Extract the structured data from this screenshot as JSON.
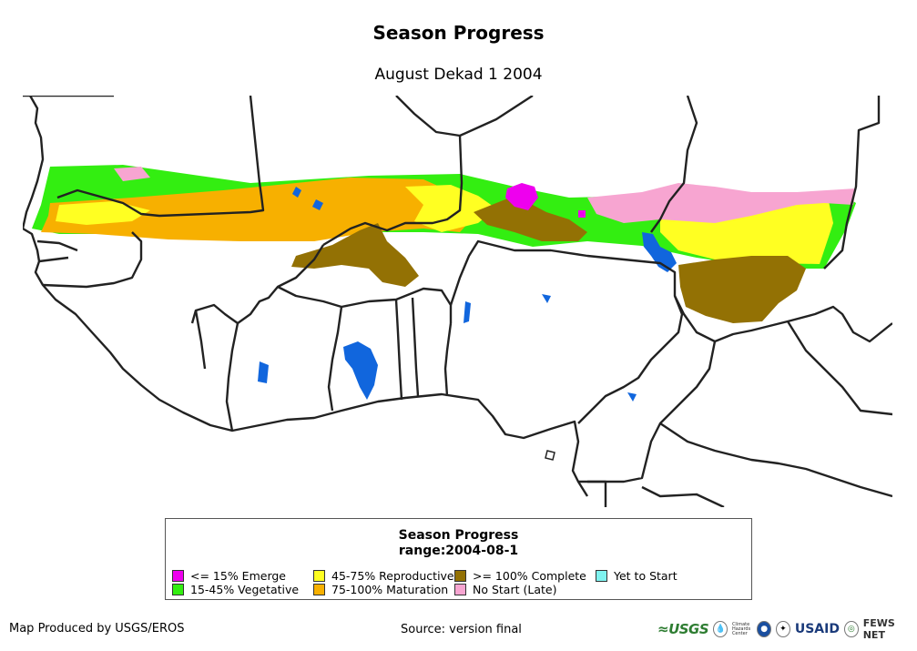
{
  "header": {
    "title": "Season Progress",
    "subtitle": "August Dekad 1 2004"
  },
  "legend": {
    "title_line1": "Season Progress",
    "title_line2": "range:2004-08-1",
    "items": [
      {
        "label": "<= 15% Emerge",
        "color": "#ee00ee"
      },
      {
        "label": "15-45% Vegetative",
        "color": "#33ee11"
      },
      {
        "label": "45-75% Reproductive",
        "color": "#ffff22"
      },
      {
        "label": "75-100% Maturation",
        "color": "#f7b000"
      },
      {
        "label": ">= 100% Complete",
        "color": "#937104"
      },
      {
        "label": "No Start (Late)",
        "color": "#f7a5d1"
      },
      {
        "label": "Yet to Start",
        "color": "#7ff3f0"
      }
    ]
  },
  "map_colors": {
    "water": "#1166dd",
    "border": "#222222",
    "land": "#ffffff"
  },
  "footer": {
    "producer": "Map Produced by USGS/EROS",
    "source": "Source: version final"
  },
  "logos": {
    "usgs": "≈USGS",
    "chc_text": "Climate Hazards Center",
    "usaid": "USAID",
    "fews": "FEWS NET"
  }
}
